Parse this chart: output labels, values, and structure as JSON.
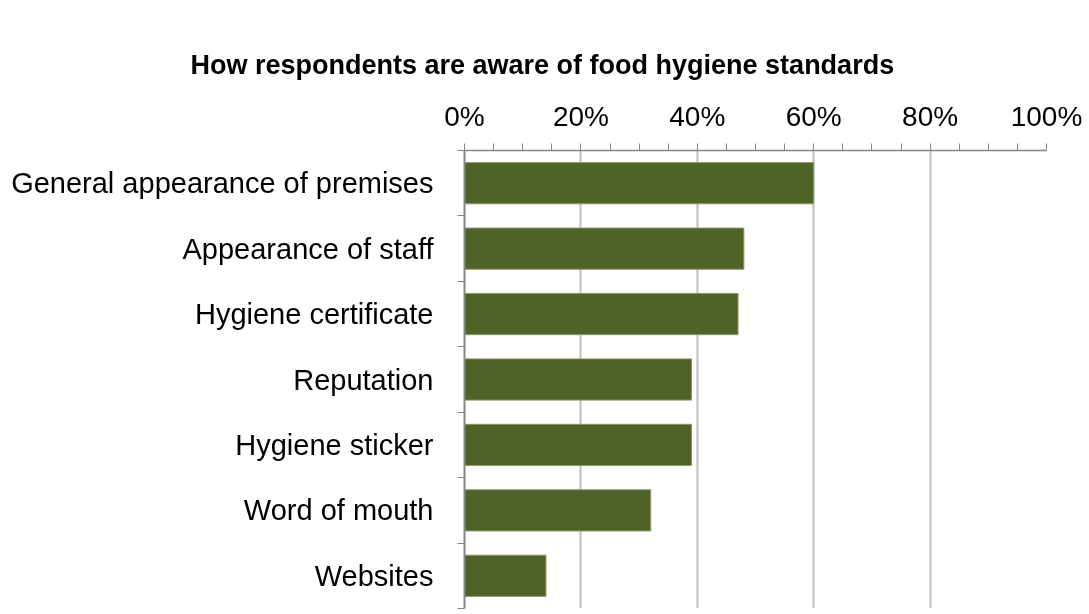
{
  "chart_data": {
    "type": "bar",
    "orientation": "horizontal",
    "title": "How respondents are aware of food hygiene standards",
    "categories": [
      "General appearance of premises",
      "Appearance of staff",
      "Hygiene certificate",
      "Reputation",
      "Hygiene sticker",
      "Word of mouth",
      "Websites"
    ],
    "values": [
      60,
      48,
      47,
      39,
      39,
      32,
      14
    ],
    "color": "#4f6228",
    "xlim": [
      0,
      100
    ],
    "xticks": [
      {
        "value": 0,
        "label": "0%"
      },
      {
        "value": 5,
        "label": null
      },
      {
        "value": 10,
        "label": null
      },
      {
        "value": 15,
        "label": null
      },
      {
        "value": 20,
        "label": "20%"
      },
      {
        "value": 25,
        "label": null
      },
      {
        "value": 30,
        "label": null
      },
      {
        "value": 35,
        "label": null
      },
      {
        "value": 40,
        "label": "40%"
      },
      {
        "value": 45,
        "label": null
      },
      {
        "value": 50,
        "label": null
      },
      {
        "value": 55,
        "label": null
      },
      {
        "value": 60,
        "label": "60%"
      },
      {
        "value": 65,
        "label": null
      },
      {
        "value": 70,
        "label": null
      },
      {
        "value": 75,
        "label": null
      },
      {
        "value": 80,
        "label": "80%"
      },
      {
        "value": 85,
        "label": null
      },
      {
        "value": 90,
        "label": null
      },
      {
        "value": 95,
        "label": null
      },
      {
        "value": 100,
        "label": "100%"
      }
    ],
    "grid": "x"
  }
}
